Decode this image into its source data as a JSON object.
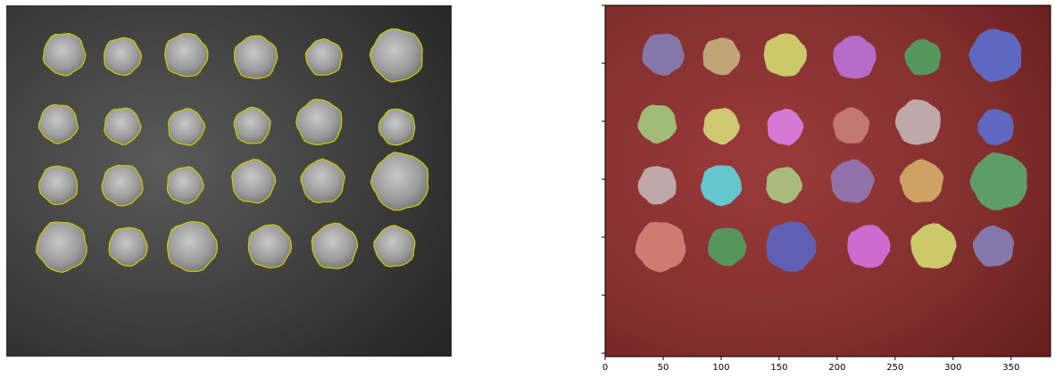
{
  "chart_data": [
    {
      "type": "image",
      "panel": "left",
      "description_kind": "grayscale coin photograph with yellow contour outlines",
      "grid": false,
      "axes_visible": false,
      "coin_rows": 4,
      "coin_cols": 6,
      "contour_color": "#c8c800",
      "image_size": [
        384,
        303
      ]
    },
    {
      "type": "image",
      "panel": "right",
      "description_kind": "segmentation label overlay on coin photograph",
      "grid": false,
      "axes_visible": true,
      "xlim": [
        0,
        384
      ],
      "xticks": [
        0,
        50,
        100,
        150,
        200,
        250,
        300,
        350
      ],
      "xtick_labels": [
        "0",
        "50",
        "100",
        "150",
        "200",
        "250",
        "300",
        "350"
      ],
      "ylim": [
        303,
        0
      ],
      "background_label_color": "#8b2020",
      "image_size": [
        384,
        303
      ],
      "region_colors": [
        [
          "#7b6aa8",
          "#c9a36b",
          "#d6d25a",
          "#b85ad0",
          "#3f8f45",
          "#4a55c8"
        ],
        [
          "#9ec06a",
          "#d8d260",
          "#e06ae0",
          "#c96a60",
          "#c8a8a8",
          "#4a55c8"
        ],
        [
          "#c8a8a8",
          "#50d0d8",
          "#a8c070",
          "#8a62a8",
          "#d8a050",
          "#4a9a55"
        ],
        [
          "#d87060",
          "#3f8f45",
          "#4a4ab8",
          "#d85ad8",
          "#d6d25a",
          "#7b6aa8"
        ]
      ]
    }
  ],
  "coins": [
    [
      [
        50,
        42,
        36
      ],
      [
        100,
        44,
        32
      ],
      [
        155,
        43,
        37
      ],
      [
        215,
        45,
        37
      ],
      [
        274,
        45,
        31
      ],
      [
        337,
        43,
        45
      ]
    ],
    [
      [
        45,
        102,
        33
      ],
      [
        100,
        104,
        31
      ],
      [
        155,
        105,
        31
      ],
      [
        212,
        104,
        31
      ],
      [
        270,
        101,
        39
      ],
      [
        337,
        105,
        31
      ]
    ],
    [
      [
        45,
        155,
        33
      ],
      [
        100,
        155,
        35
      ],
      [
        154,
        155,
        31
      ],
      [
        213,
        152,
        37
      ],
      [
        273,
        152,
        37
      ],
      [
        340,
        152,
        49
      ]
    ],
    [
      [
        48,
        208,
        43
      ],
      [
        105,
        208,
        33
      ],
      [
        160,
        208,
        43
      ],
      [
        227,
        208,
        37
      ],
      [
        283,
        208,
        39
      ],
      [
        335,
        208,
        35
      ]
    ]
  ]
}
